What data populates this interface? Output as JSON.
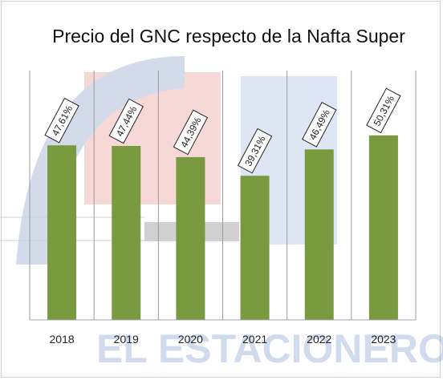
{
  "chart_data": {
    "type": "bar",
    "title": "Precio del GNC respecto de la Nafta Super",
    "categories": [
      "2018",
      "2019",
      "2020",
      "2021",
      "2022",
      "2023"
    ],
    "values": [
      47.61,
      47.44,
      44.39,
      39.31,
      46.49,
      50.31
    ],
    "data_labels": [
      "47,61%",
      "47,44%",
      "44,39%",
      "39,31%",
      "46,49%",
      "50,31%"
    ],
    "xlabel": "",
    "ylabel": "",
    "ylim": [
      0,
      68
    ],
    "grid": "vertical",
    "legend": "none",
    "bar_color": "#7a9a3f"
  },
  "watermark": {
    "text": "EL ESTACIONERO"
  }
}
